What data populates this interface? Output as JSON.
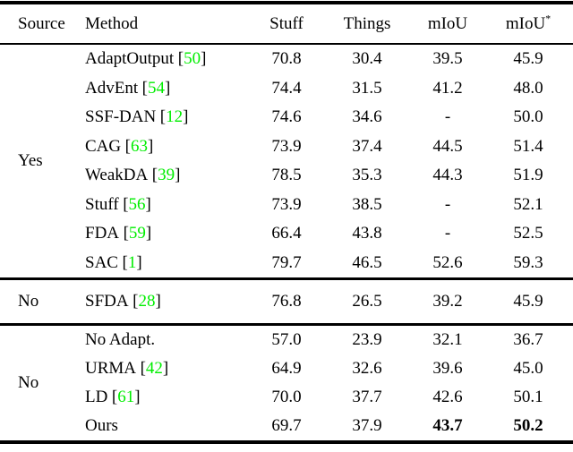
{
  "table": {
    "header": {
      "source": "Source",
      "method": "Method",
      "stuff": "Stuff",
      "things": "Things",
      "miou": "mIoU",
      "miou_star_base": "mIoU",
      "miou_star_sup": "*"
    },
    "colors": {
      "citation_green": "#00ee00",
      "text": "#000000",
      "background": "#ffffff"
    },
    "groups": [
      {
        "source_label": "Yes",
        "rows": [
          {
            "method": "AdaptOutput",
            "cite": "50",
            "stuff": "70.8",
            "things": "30.4",
            "miou": "39.5",
            "miou_star": "45.9"
          },
          {
            "method": "AdvEnt",
            "cite": "54",
            "stuff": "74.4",
            "things": "31.5",
            "miou": "41.2",
            "miou_star": "48.0"
          },
          {
            "method": "SSF-DAN",
            "cite": "12",
            "stuff": "74.6",
            "things": "34.6",
            "miou": "-",
            "miou_star": "50.0"
          },
          {
            "method": "CAG",
            "cite": "63",
            "stuff": "73.9",
            "things": "37.4",
            "miou": "44.5",
            "miou_star": "51.4"
          },
          {
            "method": "WeakDA",
            "cite": "39",
            "stuff": "78.5",
            "things": "35.3",
            "miou": "44.3",
            "miou_star": "51.9"
          },
          {
            "method": "Stuff",
            "cite": "56",
            "stuff": "73.9",
            "things": "38.5",
            "miou": "-",
            "miou_star": "52.1"
          },
          {
            "method": "FDA",
            "cite": "59",
            "stuff": "66.4",
            "things": "43.8",
            "miou": "-",
            "miou_star": "52.5"
          },
          {
            "method": "SAC",
            "cite": "1",
            "stuff": "79.7",
            "things": "46.5",
            "miou": "52.6",
            "miou_star": "59.3"
          }
        ]
      },
      {
        "source_label": "No",
        "rows": [
          {
            "method": "SFDA",
            "cite": "28",
            "stuff": "76.8",
            "things": "26.5",
            "miou": "39.2",
            "miou_star": "45.9"
          }
        ]
      },
      {
        "source_label": "No",
        "rows": [
          {
            "method": "No Adapt.",
            "cite": null,
            "stuff": "57.0",
            "things": "23.9",
            "miou": "32.1",
            "miou_star": "36.7"
          },
          {
            "method": "URMA",
            "cite": "42",
            "stuff": "64.9",
            "things": "32.6",
            "miou": "39.6",
            "miou_star": "45.0"
          },
          {
            "method": "LD",
            "cite": "61",
            "stuff": "70.0",
            "things": "37.7",
            "miou": "42.6",
            "miou_star": "50.1"
          },
          {
            "method": "Ours",
            "cite": null,
            "stuff": "69.7",
            "things": "37.9",
            "miou": "43.7",
            "miou_bold": true,
            "miou_star": "50.2",
            "miou_star_bold": true
          }
        ]
      }
    ]
  }
}
